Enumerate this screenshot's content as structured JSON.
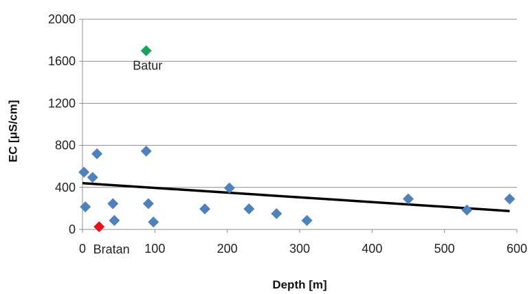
{
  "chart_data": {
    "type": "scatter",
    "xlabel": "Depth [m]",
    "ylabel": "EC [μS/cm]",
    "xlim": [
      0,
      600
    ],
    "ylim": [
      0,
      2000
    ],
    "xticks": [
      0,
      100,
      200,
      300,
      400,
      500,
      600
    ],
    "yticks": [
      0,
      400,
      800,
      1200,
      1600,
      2000
    ],
    "grid": "horizontal",
    "colors": {
      "wells": "#4f81bd",
      "batur": "#1aa35a",
      "bratan": "#e8101a",
      "trend": "#000000"
    },
    "series": [
      {
        "marker": "diamond",
        "points": [
          {
            "x": 2,
            "y": 545
          },
          {
            "x": 4,
            "y": 215
          },
          {
            "x": 14,
            "y": 495
          },
          {
            "x": 20,
            "y": 720
          },
          {
            "x": 42,
            "y": 245
          },
          {
            "x": 44,
            "y": 85
          },
          {
            "x": 88,
            "y": 745
          },
          {
            "x": 91,
            "y": 245
          },
          {
            "x": 98,
            "y": 70
          },
          {
            "x": 169,
            "y": 195
          },
          {
            "x": 203,
            "y": 395
          },
          {
            "x": 230,
            "y": 195
          },
          {
            "x": 268,
            "y": 150
          },
          {
            "x": 310,
            "y": 85
          },
          {
            "x": 450,
            "y": 290
          },
          {
            "x": 531,
            "y": 185
          },
          {
            "x": 590,
            "y": 290
          }
        ]
      },
      {
        "marker": "diamond",
        "points": [
          {
            "x": 88,
            "y": 1700
          }
        ]
      },
      {
        "marker": "diamond",
        "points": [
          {
            "x": 23,
            "y": 25
          }
        ]
      }
    ],
    "annotations": [
      {
        "text": "Batur",
        "x": 90,
        "y": 1560
      },
      {
        "text": "Bratan",
        "x": 40,
        "y": -190
      }
    ],
    "trendline": {
      "x": [
        0,
        590
      ],
      "y": [
        440,
        175
      ]
    }
  }
}
